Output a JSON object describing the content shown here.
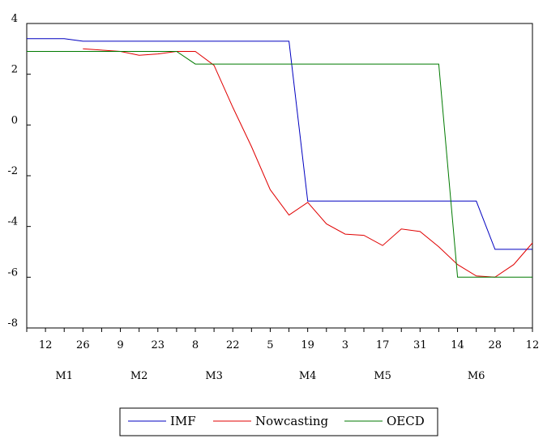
{
  "chart_data": {
    "type": "line",
    "x": [
      0,
      1,
      2,
      3,
      4,
      5,
      6,
      7,
      8,
      9,
      10,
      11,
      12,
      13,
      14,
      15,
      16,
      17,
      18,
      19,
      20,
      21,
      22,
      23,
      24,
      25,
      26,
      27
    ],
    "x_tick_labels": [
      "12",
      "26",
      "9",
      "23",
      "8",
      "22",
      "5",
      "19",
      "3",
      "17",
      "31",
      "14",
      "28",
      "12"
    ],
    "x_tick_positions": [
      1,
      3,
      5,
      7,
      9,
      11,
      13,
      15,
      17,
      19,
      21,
      23,
      25,
      27
    ],
    "month_labels": [
      {
        "label": "M1",
        "at": 2
      },
      {
        "label": "M2",
        "at": 6
      },
      {
        "label": "M3",
        "at": 10
      },
      {
        "label": "M4",
        "at": 15
      },
      {
        "label": "M5",
        "at": 19
      },
      {
        "label": "M6",
        "at": 24
      }
    ],
    "y_tick_labels": [
      "4",
      "2",
      "0",
      "-2",
      "-4",
      "-6",
      "-8"
    ],
    "ylim": [
      -8,
      4
    ],
    "grid": false,
    "legend_position": "bottom",
    "series": [
      {
        "name": "IMF",
        "color": "#0000c0",
        "points": [
          [
            0,
            3.4
          ],
          [
            2,
            3.4
          ],
          [
            3,
            3.3
          ],
          [
            14,
            3.3
          ],
          [
            15,
            -3.0
          ],
          [
            24,
            -3.0
          ],
          [
            25,
            -4.9
          ],
          [
            27,
            -4.9
          ]
        ]
      },
      {
        "name": "Nowcasting",
        "color": "#e00000",
        "points": [
          [
            3,
            3.0
          ],
          [
            4,
            2.95
          ],
          [
            5,
            2.9
          ],
          [
            6,
            2.75
          ],
          [
            7,
            2.8
          ],
          [
            8,
            2.9
          ],
          [
            9,
            2.9
          ],
          [
            10,
            2.35
          ],
          [
            11,
            0.7
          ],
          [
            12,
            -0.85
          ],
          [
            13,
            -2.55
          ],
          [
            14,
            -3.55
          ],
          [
            15,
            -3.05
          ],
          [
            16,
            -3.9
          ],
          [
            17,
            -4.3
          ],
          [
            18,
            -4.35
          ],
          [
            19,
            -4.75
          ],
          [
            20,
            -4.1
          ],
          [
            21,
            -4.2
          ],
          [
            22,
            -4.8
          ],
          [
            23,
            -5.5
          ],
          [
            24,
            -5.95
          ],
          [
            25,
            -6.0
          ],
          [
            26,
            -5.5
          ],
          [
            27,
            -4.65
          ]
        ]
      },
      {
        "name": "OECD",
        "color": "#007a00",
        "points": [
          [
            0,
            2.9
          ],
          [
            8,
            2.9
          ],
          [
            9,
            2.4
          ],
          [
            22,
            2.4
          ],
          [
            23,
            -6.0
          ],
          [
            27,
            -6.0
          ]
        ]
      }
    ]
  }
}
